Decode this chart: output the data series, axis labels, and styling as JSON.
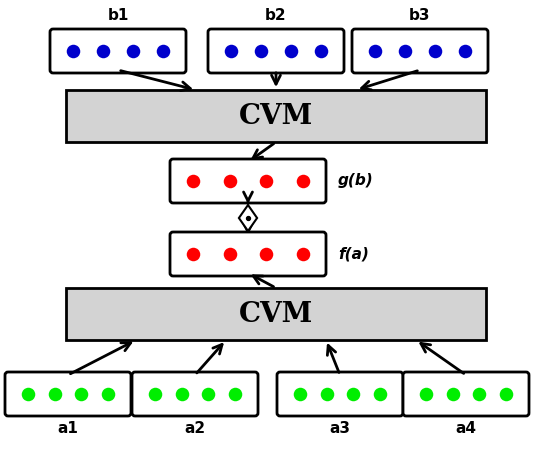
{
  "bg_color": "#ffffff",
  "cvm_box_color": "#d3d3d3",
  "cvm_box_edge": "#000000",
  "node_box_color": "#ffffff",
  "node_box_edge": "#000000",
  "blue_dot_color": "#0000cc",
  "red_dot_color": "#ff0000",
  "green_dot_color": "#00ee00",
  "arrow_color": "#000000",
  "cvm_fontsize": 20,
  "label_fontsize": 11,
  "dot_size": 95,
  "b_labels": [
    "b1",
    "b2",
    "b3"
  ],
  "a_labels": [
    "a1",
    "a2",
    "a3",
    "a4"
  ],
  "gb_label": "g(b)",
  "fa_label": "f(a)",
  "cvm_label": "CVM"
}
